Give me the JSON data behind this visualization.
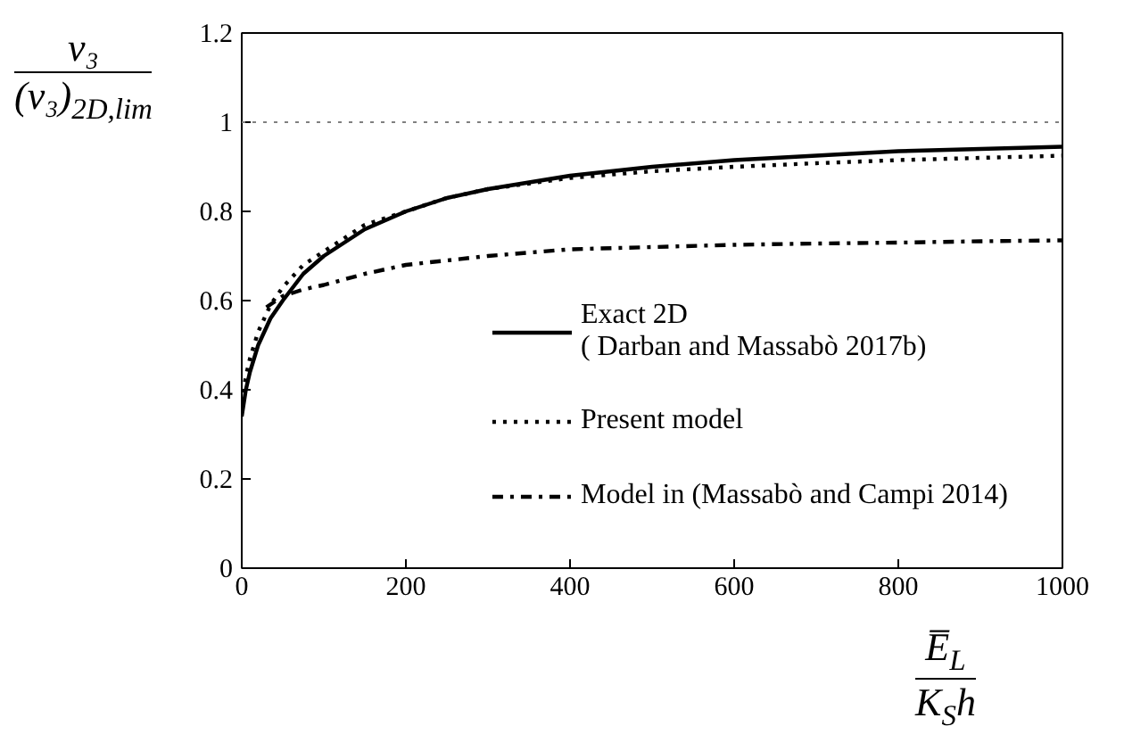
{
  "chart_data": {
    "type": "line",
    "xlabel": "E̅$_{L}$\nK$_{S}$h",
    "ylabel": "v₃\n(v₃)$_{2D,lim}$",
    "xlim": [
      0,
      1000
    ],
    "xticks": [
      0,
      200,
      400,
      600,
      800,
      1000
    ],
    "ylim": [
      0,
      1.2
    ],
    "yticks": [
      0,
      0.2,
      0.4,
      0.6,
      0.8,
      1,
      1.2
    ],
    "grid": false,
    "legend": "bottom right",
    "marker": "none",
    "ref_lines": [
      {
        "axis": "y",
        "value": 1,
        "color": "#808080",
        "line_style": "dotted"
      }
    ],
    "series": [
      {
        "name": "Exact 2D\n( Darban and Massabò 2017b)",
        "color": "#000000",
        "line_style": "solid",
        "x": [
          0,
          5,
          10,
          20,
          35,
          50,
          75,
          100,
          150,
          200,
          250,
          300,
          400,
          500,
          600,
          700,
          800,
          900,
          1000
        ],
        "values": [
          0.34,
          0.4,
          0.44,
          0.5,
          0.56,
          0.6,
          0.66,
          0.7,
          0.76,
          0.8,
          0.83,
          0.85,
          0.88,
          0.9,
          0.915,
          0.925,
          0.935,
          0.94,
          0.945
        ]
      },
      {
        "name": "Present model",
        "color": "#000000",
        "line_style": "dotted",
        "x": [
          0,
          5,
          10,
          20,
          35,
          50,
          75,
          100,
          150,
          200,
          250,
          300,
          400,
          500,
          600,
          700,
          800,
          900,
          1000
        ],
        "values": [
          0.37,
          0.43,
          0.47,
          0.53,
          0.59,
          0.63,
          0.68,
          0.71,
          0.77,
          0.8,
          0.83,
          0.85,
          0.875,
          0.89,
          0.9,
          0.908,
          0.915,
          0.92,
          0.925
        ]
      },
      {
        "name": "Model in (Massabò and Campi 2014)",
        "color": "#000000",
        "line_style": "dashdot",
        "x": [
          30,
          50,
          75,
          100,
          150,
          200,
          250,
          300,
          400,
          500,
          600,
          700,
          800,
          900,
          1000
        ],
        "values": [
          0.585,
          0.61,
          0.625,
          0.635,
          0.66,
          0.68,
          0.69,
          0.7,
          0.715,
          0.72,
          0.725,
          0.728,
          0.73,
          0.733,
          0.735
        ]
      }
    ]
  }
}
